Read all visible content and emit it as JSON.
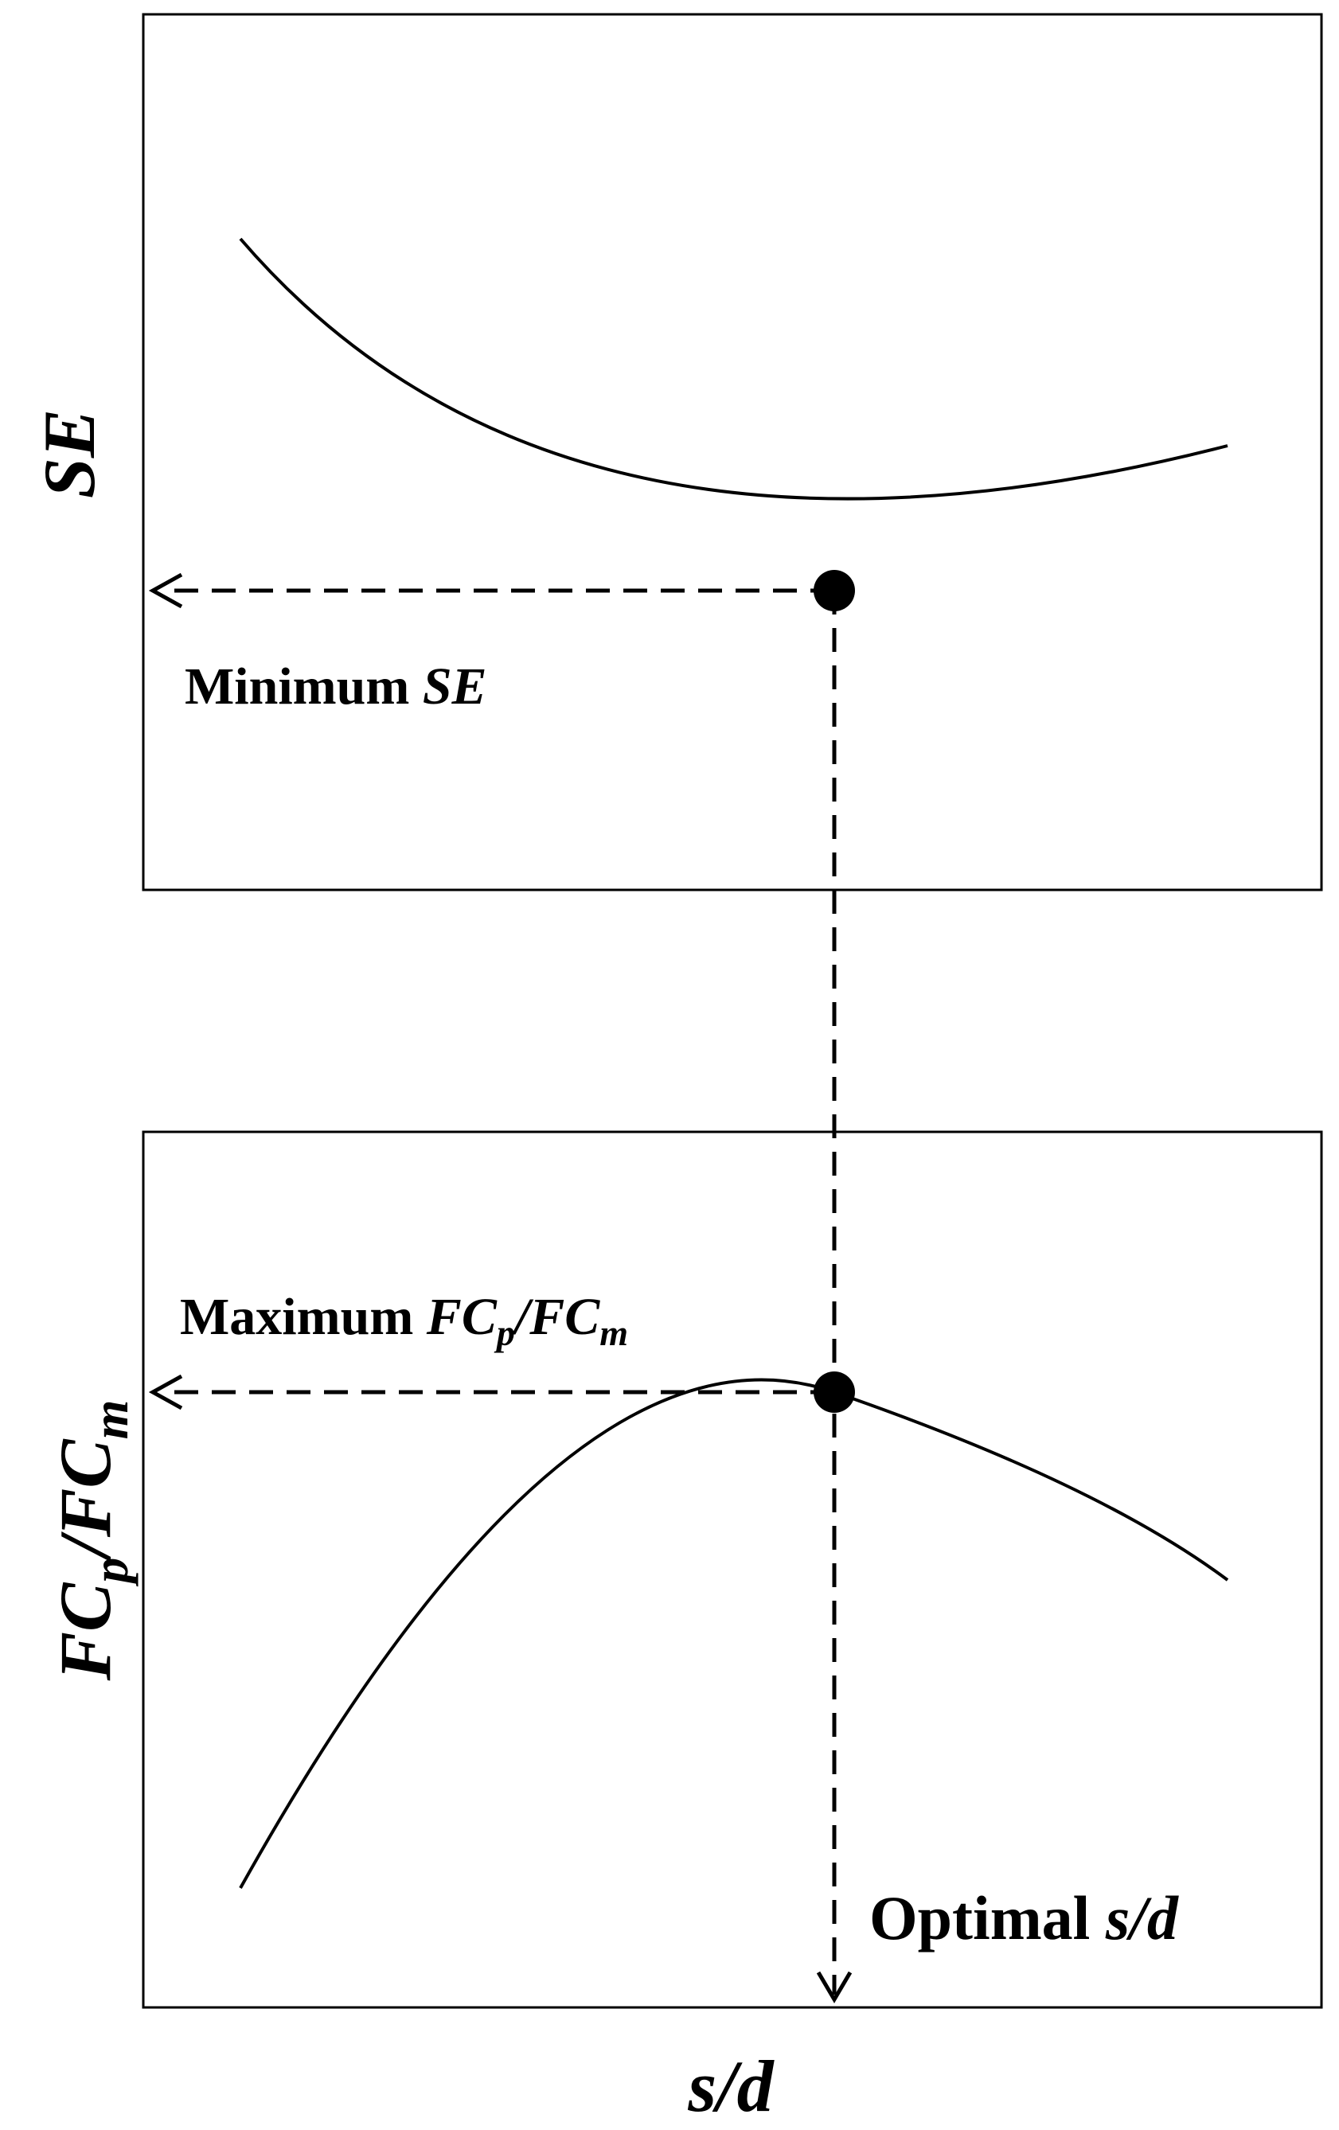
{
  "top_panel": {
    "y_axis_label": "SE",
    "annotation": {
      "prefix": "Minimum ",
      "symbol": "SE"
    }
  },
  "bottom_panel": {
    "y_axis_label": {
      "part1": "FC",
      "sub1": "p",
      "slash": "/",
      "part2": "FC",
      "sub2": "m"
    },
    "annotation": {
      "prefix": "Maximum ",
      "part1": "FC",
      "sub1": "p",
      "slash": "/",
      "part2": "FC",
      "sub2": "m"
    }
  },
  "optimal_label": {
    "prefix": "Optimal ",
    "symbol": "s/d"
  },
  "x_axis_label": "s/d",
  "colors": {
    "line": "#000000",
    "background": "#ffffff"
  }
}
